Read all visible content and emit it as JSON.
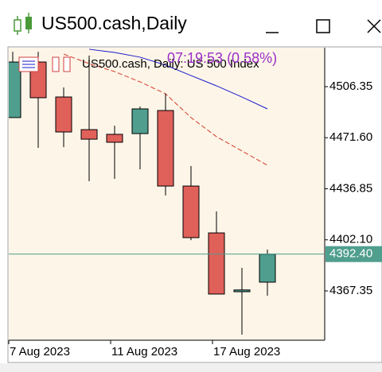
{
  "window": {
    "title": "US500.cash,Daily"
  },
  "chart_data": {
    "type": "candlestick",
    "title": "US500.cash, Daily:  US 500 Index",
    "annotation": "07:19:53 (0.58%)",
    "categories": [
      "7 Aug 2023",
      null,
      null,
      null,
      "11 Aug 2023",
      null,
      null,
      null,
      "17 Aug 2023",
      null,
      null
    ],
    "open": [
      4485.3,
      4523.1,
      4499.3,
      4477.1,
      4473.9,
      4474.4,
      4490.1,
      4438.7,
      4406.8,
      4366.8,
      4373.3
    ],
    "high": [
      4530.1,
      4530.1,
      4505.8,
      4527.5,
      4479.8,
      4492.8,
      4501.5,
      4452.3,
      4421.4,
      4383.0,
      4395.5
    ],
    "low": [
      4485.3,
      4464.7,
      4465.2,
      4442.0,
      4443.6,
      4450.1,
      4432.3,
      4401.9,
      4365.2,
      4337.6,
      4364.1
    ],
    "close": [
      4523.1,
      4498.8,
      4475.5,
      4470.6,
      4468.5,
      4491.2,
      4438.7,
      4403.6,
      4365.2,
      4368.0,
      4392.4
    ],
    "up_color": "#4f9e8e",
    "down_color": "#e0605a",
    "series": [
      {
        "color": "#1a1acc",
        "dashed": false,
        "values": [
          null,
          null,
          null,
          4531.8,
          4529.6,
          4526.4,
          4521.0,
          4513.9,
          4506.9,
          4499.3,
          4491.2
        ]
      },
      {
        "color": "#d23a2a",
        "dashed": true,
        "values": [
          null,
          null,
          4528.5,
          4522.0,
          4516.6,
          4509.6,
          4501.5,
          4485.3,
          4472.3,
          4462.6,
          4452.8
        ]
      }
    ],
    "current_price": {
      "value": 4392.4,
      "label": "4392.40"
    },
    "current_price_color": "#4f9e8e",
    "ylim": [
      4333.8,
      4532.85
    ],
    "yticks": [
      {
        "value": 4367.35,
        "label": "4367.35"
      },
      {
        "value": 4402.1,
        "label": "4402.10"
      },
      {
        "value": 4436.85,
        "label": "4436.85"
      },
      {
        "value": 4471.6,
        "label": "4471.60"
      },
      {
        "value": 4506.35,
        "label": "4506.35"
      }
    ]
  }
}
